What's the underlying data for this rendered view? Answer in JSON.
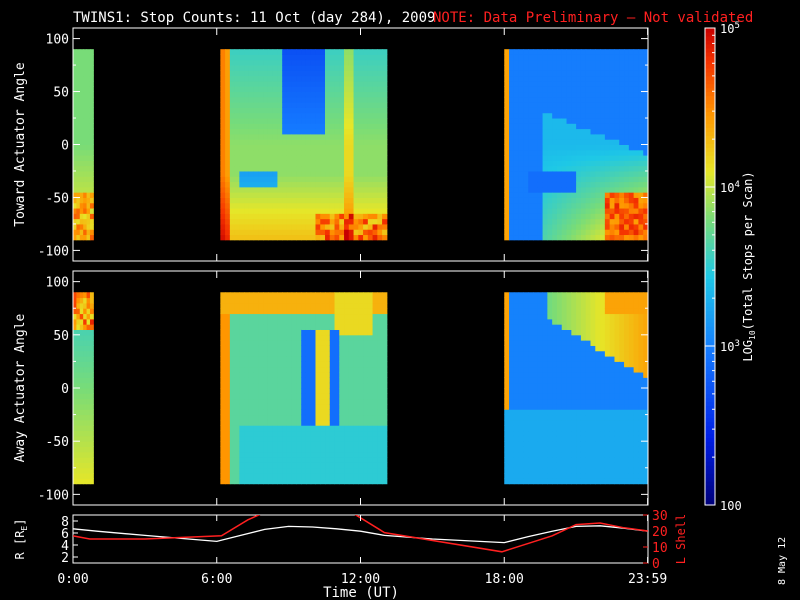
{
  "header": {
    "title": "TWINS1: Stop Counts: 11 Oct (day 284), 2009",
    "note": "NOTE: Data Preliminary – Not validated",
    "note_color": "#ff2020"
  },
  "footer": {
    "xlabel": "Time (UT)",
    "date_stamp": "8 May 12"
  },
  "chart_data": [
    {
      "type": "heatmap",
      "panel": "toward",
      "ylabel": "Toward Actuator Angle",
      "xlim_hours": [
        0,
        24
      ],
      "ylim": [
        -110,
        110
      ],
      "yticks": [
        -100,
        -50,
        0,
        50,
        100
      ],
      "ytick_labels": [
        "-100",
        "-50",
        "0",
        "50",
        "100"
      ],
      "angle_range": [
        -90,
        90
      ],
      "data_intervals_hours": [
        [
          0.0,
          0.85
        ],
        [
          6.15,
          13.1
        ],
        [
          18.0,
          24.0
        ]
      ],
      "colorscale": "log",
      "description_of_values": "log10 total stops per scan, ~2.8 to 5"
    },
    {
      "type": "heatmap",
      "panel": "away",
      "ylabel": "Away Actuator Angle",
      "xlim_hours": [
        0,
        24
      ],
      "ylim": [
        -110,
        110
      ],
      "yticks": [
        -100,
        -50,
        0,
        50,
        100
      ],
      "ytick_labels": [
        "-100",
        "-50",
        "0",
        "50",
        "100"
      ],
      "angle_range": [
        -90,
        90
      ],
      "data_intervals_hours": [
        [
          0.0,
          0.85
        ],
        [
          6.15,
          13.1
        ],
        [
          18.0,
          24.0
        ]
      ],
      "colorscale": "log"
    },
    {
      "type": "line",
      "panel": "orbit",
      "ylabel_left": "R [R",
      "ylabel_left_sub": "E",
      "ylabel_left_close": "]",
      "ylabel_right": "L Shell",
      "ylim_left": [
        1,
        9
      ],
      "yticks_left": [
        2,
        4,
        6,
        8
      ],
      "ytick_labels_left": [
        "2",
        "4",
        "6",
        "8"
      ],
      "ylim_right": [
        0,
        30
      ],
      "yticks_right": [
        0,
        10,
        20,
        30
      ],
      "ytick_labels_right": [
        "0",
        "10",
        "20",
        "30"
      ],
      "xticks_hours": [
        0,
        6,
        12,
        18,
        23.983
      ],
      "xtick_labels": [
        "0:00",
        "6:00",
        "12:00",
        "18:00",
        "23:59"
      ],
      "series": [
        {
          "name": "R",
          "axis": "left",
          "color": "#ffffff",
          "x": [
            0,
            1,
            3,
            6,
            7,
            8,
            9,
            10,
            11,
            12,
            13,
            15,
            18,
            19,
            20,
            21,
            22,
            23,
            24
          ],
          "y": [
            6.7,
            6.3,
            5.6,
            4.6,
            5.6,
            6.6,
            7.1,
            7.0,
            6.7,
            6.3,
            5.6,
            5.0,
            4.4,
            5.4,
            6.3,
            7.1,
            7.2,
            6.8,
            6.3
          ]
        },
        {
          "name": "L Shell",
          "axis": "right",
          "color": "#ff2020",
          "x": [
            0,
            0.7,
            3,
            6.2,
            7.3,
            7.9,
            8.0
          ],
          "y": [
            17,
            15,
            15,
            17,
            27,
            31,
            31
          ],
          "x2": [
            11.7,
            13.0,
            17.9,
            20,
            21,
            22,
            23,
            24
          ],
          "y2": [
            31,
            19,
            7,
            17,
            24,
            25,
            22,
            20
          ]
        }
      ]
    }
  ],
  "colorbar": {
    "label_prefix": "LOG",
    "label_sub": "10",
    "label_suffix": "(Total Stops per Scan)",
    "range_log": [
      2,
      5
    ],
    "ticks": [
      {
        "value_log": 5,
        "base": "10",
        "exp": "5"
      },
      {
        "value_log": 4,
        "base": "10",
        "exp": "4"
      },
      {
        "value_log": 3,
        "base": "10",
        "exp": "3"
      },
      {
        "value_log": 2,
        "base": "100",
        "exp": ""
      }
    ]
  }
}
